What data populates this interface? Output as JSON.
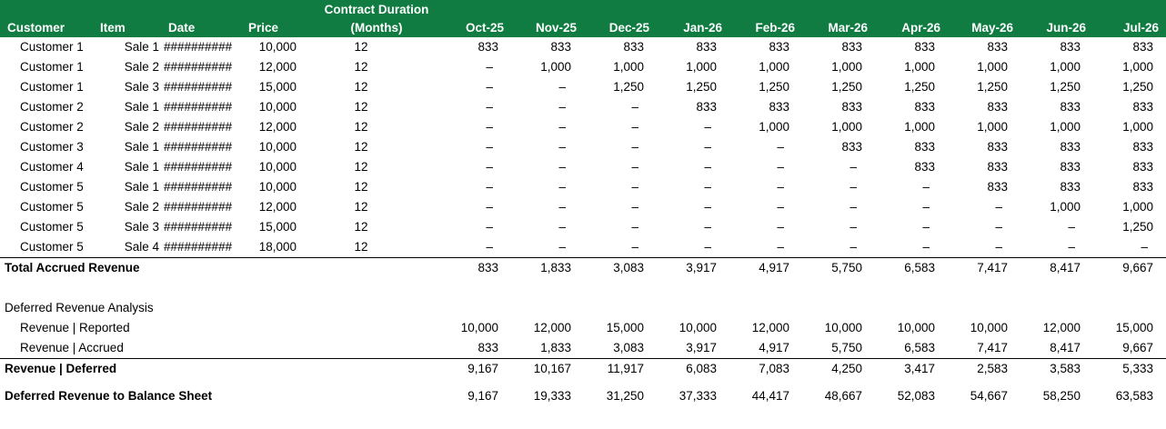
{
  "theme": {
    "header_green": "#107C41",
    "header_text_color": "#FFFFFF",
    "body_text_color": "#000000",
    "rule_color": "#000000"
  },
  "table": {
    "header": {
      "customer": "Customer",
      "item": "Item",
      "date": "Date",
      "price": "Price",
      "duration_line1": "Contract Duration",
      "duration_line2": "(Months)"
    },
    "months": [
      "Oct-25",
      "Nov-25",
      "Dec-25",
      "Jan-26",
      "Feb-26",
      "Mar-26",
      "Apr-26",
      "May-26",
      "Jun-26",
      "Jul-26"
    ],
    "sales_rows": [
      {
        "customer": "Customer 1",
        "item": "Sale 1",
        "date": "##########",
        "price": "10,000",
        "duration": "12",
        "values": [
          "833",
          "833",
          "833",
          "833",
          "833",
          "833",
          "833",
          "833",
          "833",
          "833"
        ]
      },
      {
        "customer": "Customer 1",
        "item": "Sale 2",
        "date": "##########",
        "price": "12,000",
        "duration": "12",
        "values": [
          "–",
          "1,000",
          "1,000",
          "1,000",
          "1,000",
          "1,000",
          "1,000",
          "1,000",
          "1,000",
          "1,000"
        ]
      },
      {
        "customer": "Customer 1",
        "item": "Sale 3",
        "date": "##########",
        "price": "15,000",
        "duration": "12",
        "values": [
          "–",
          "–",
          "1,250",
          "1,250",
          "1,250",
          "1,250",
          "1,250",
          "1,250",
          "1,250",
          "1,250"
        ]
      },
      {
        "customer": "Customer 2",
        "item": "Sale 1",
        "date": "##########",
        "price": "10,000",
        "duration": "12",
        "values": [
          "–",
          "–",
          "–",
          "833",
          "833",
          "833",
          "833",
          "833",
          "833",
          "833"
        ]
      },
      {
        "customer": "Customer 2",
        "item": "Sale 2",
        "date": "##########",
        "price": "12,000",
        "duration": "12",
        "values": [
          "–",
          "–",
          "–",
          "–",
          "1,000",
          "1,000",
          "1,000",
          "1,000",
          "1,000",
          "1,000"
        ]
      },
      {
        "customer": "Customer 3",
        "item": "Sale 1",
        "date": "##########",
        "price": "10,000",
        "duration": "12",
        "values": [
          "–",
          "–",
          "–",
          "–",
          "–",
          "833",
          "833",
          "833",
          "833",
          "833"
        ]
      },
      {
        "customer": "Customer 4",
        "item": "Sale 1",
        "date": "##########",
        "price": "10,000",
        "duration": "12",
        "values": [
          "–",
          "–",
          "–",
          "–",
          "–",
          "–",
          "833",
          "833",
          "833",
          "833"
        ]
      },
      {
        "customer": "Customer 5",
        "item": "Sale 1",
        "date": "##########",
        "price": "10,000",
        "duration": "12",
        "values": [
          "–",
          "–",
          "–",
          "–",
          "–",
          "–",
          "–",
          "833",
          "833",
          "833"
        ]
      },
      {
        "customer": "Customer 5",
        "item": "Sale 2",
        "date": "##########",
        "price": "12,000",
        "duration": "12",
        "values": [
          "–",
          "–",
          "–",
          "–",
          "–",
          "–",
          "–",
          "–",
          "1,000",
          "1,000"
        ]
      },
      {
        "customer": "Customer 5",
        "item": "Sale 3",
        "date": "##########",
        "price": "15,000",
        "duration": "12",
        "values": [
          "–",
          "–",
          "–",
          "–",
          "–",
          "–",
          "–",
          "–",
          "–",
          "1,250"
        ]
      },
      {
        "customer": "Customer 5",
        "item": "Sale 4",
        "date": "##########",
        "price": "18,000",
        "duration": "12",
        "values": [
          "–",
          "–",
          "–",
          "–",
          "–",
          "–",
          "–",
          "–",
          "–",
          "–"
        ]
      }
    ],
    "total_row": {
      "label": "Total Accrued Revenue",
      "values": [
        "833",
        "1,833",
        "3,083",
        "3,917",
        "4,917",
        "5,750",
        "6,583",
        "7,417",
        "8,417",
        "9,667"
      ]
    },
    "analysis": {
      "section_label": "Deferred Revenue Analysis",
      "reported": {
        "label": "Revenue | Reported",
        "values": [
          "10,000",
          "12,000",
          "15,000",
          "10,000",
          "12,000",
          "10,000",
          "10,000",
          "10,000",
          "12,000",
          "15,000"
        ]
      },
      "accrued": {
        "label": "Revenue | Accrued",
        "values": [
          "833",
          "1,833",
          "3,083",
          "3,917",
          "4,917",
          "5,750",
          "6,583",
          "7,417",
          "8,417",
          "9,667"
        ]
      },
      "deferred": {
        "label": "Revenue | Deferred",
        "values": [
          "9,167",
          "10,167",
          "11,917",
          "6,083",
          "7,083",
          "4,250",
          "3,417",
          "2,583",
          "3,583",
          "5,333"
        ]
      },
      "balance_sheet": {
        "label": "Deferred Revenue to Balance Sheet",
        "values": [
          "9,167",
          "19,333",
          "31,250",
          "37,333",
          "44,417",
          "48,667",
          "52,083",
          "54,667",
          "58,250",
          "63,583"
        ]
      }
    }
  }
}
